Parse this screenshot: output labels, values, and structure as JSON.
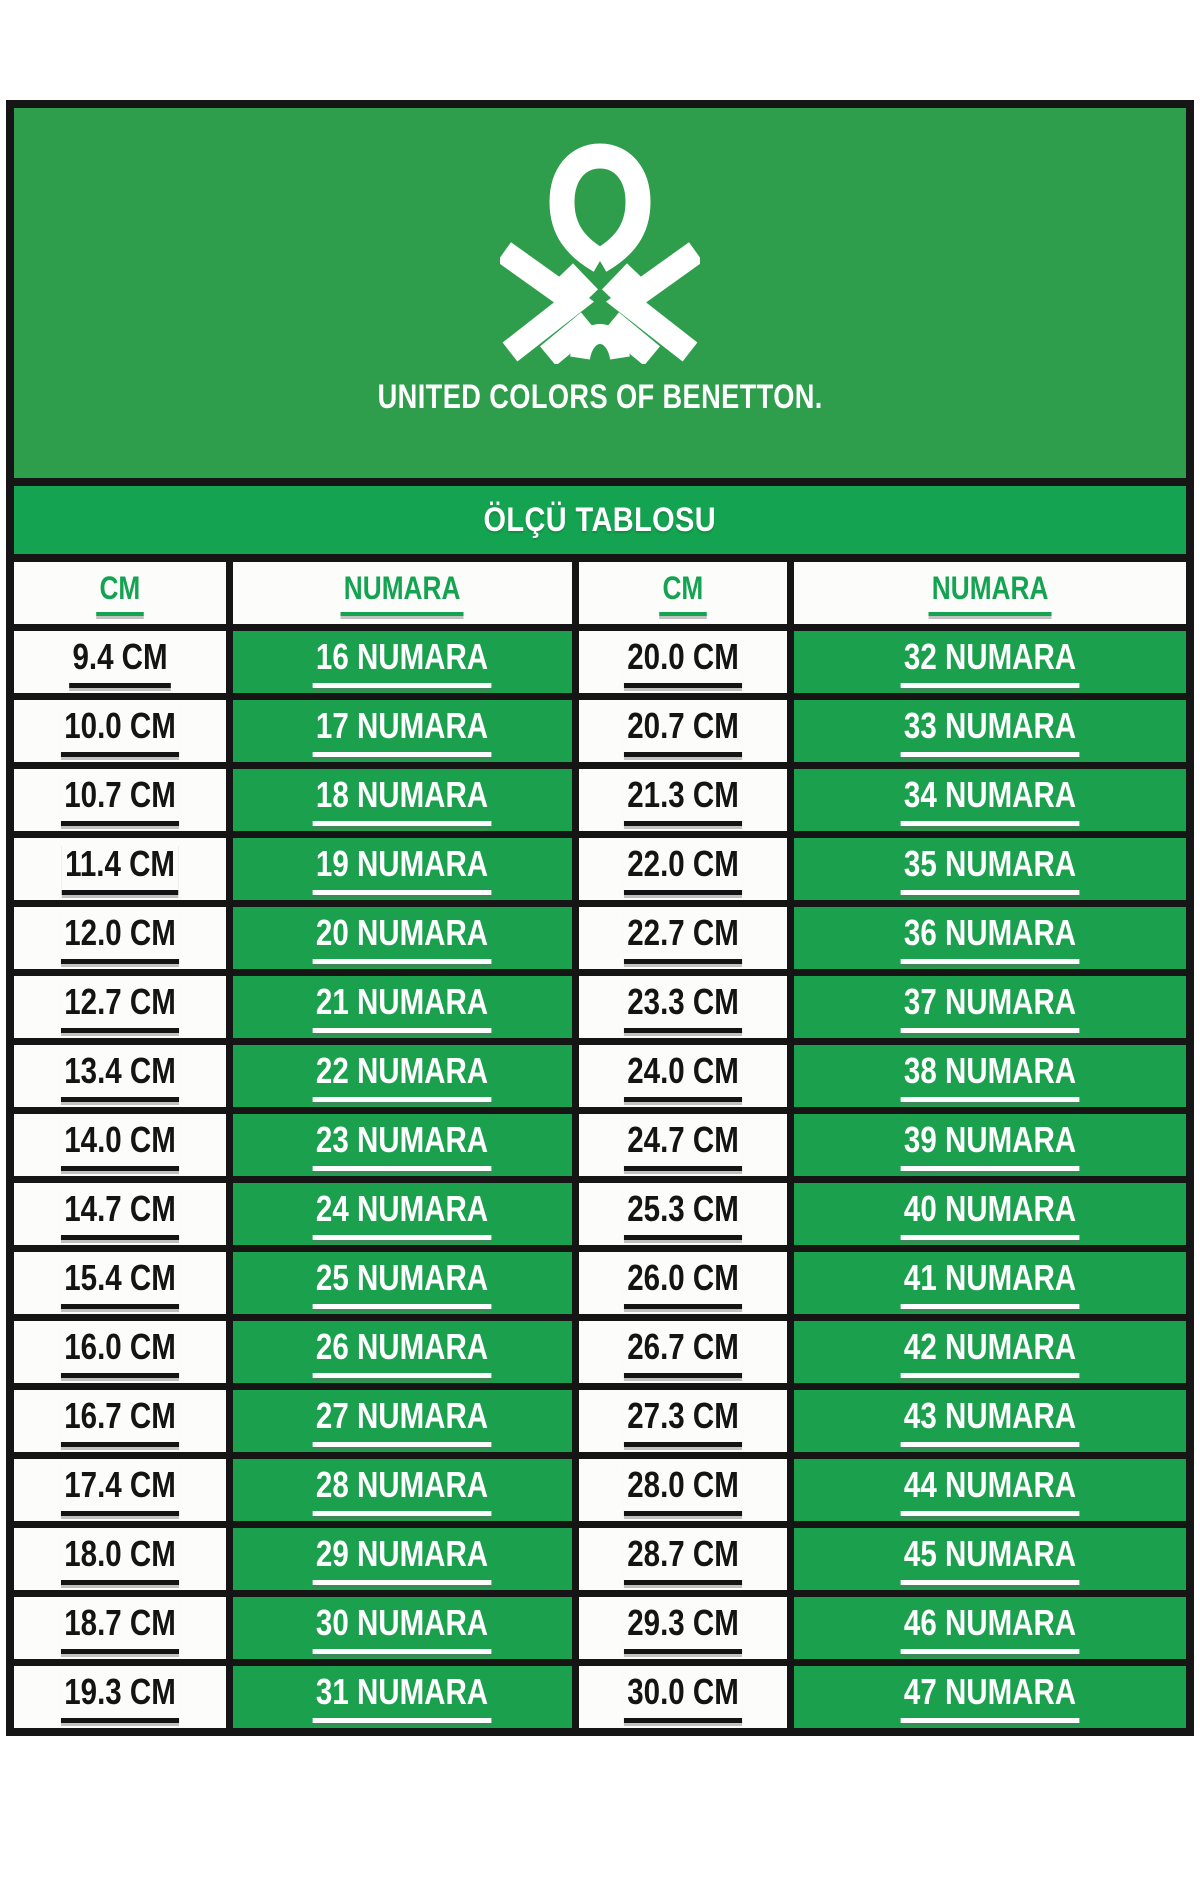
{
  "brand": {
    "logo_icon": "benetton-knot",
    "wordmark": "UNITED COLORS OF BENETTON."
  },
  "title_band": {
    "text": "ÖLÇÜ TABLOSU"
  },
  "size_table": {
    "columns": [
      "CM",
      "NUMARA",
      "CM",
      "NUMARA"
    ],
    "rows": [
      [
        "9.4 CM",
        "16 NUMARA",
        "20.0 CM",
        "32 NUMARA"
      ],
      [
        "10.0 CM",
        "17 NUMARA",
        "20.7 CM",
        "33 NUMARA"
      ],
      [
        "10.7 CM",
        "18 NUMARA",
        "21.3 CM",
        "34 NUMARA"
      ],
      [
        "11.4 CM",
        "19 NUMARA",
        "22.0 CM",
        "35 NUMARA"
      ],
      [
        "12.0 CM",
        "20 NUMARA",
        "22.7 CM",
        "36 NUMARA"
      ],
      [
        "12.7 CM",
        "21 NUMARA",
        "23.3 CM",
        "37 NUMARA"
      ],
      [
        "13.4 CM",
        "22 NUMARA",
        "24.0 CM",
        "38 NUMARA"
      ],
      [
        "14.0 CM",
        "23 NUMARA",
        "24.7 CM",
        "39 NUMARA"
      ],
      [
        "14.7 CM",
        "24 NUMARA",
        "25.3 CM",
        "40 NUMARA"
      ],
      [
        "15.4 CM",
        "25 NUMARA",
        "26.0 CM",
        "41 NUMARA"
      ],
      [
        "16.0 CM",
        "26 NUMARA",
        "26.7 CM",
        "42 NUMARA"
      ],
      [
        "16.7 CM",
        "27 NUMARA",
        "27.3 CM",
        "43 NUMARA"
      ],
      [
        "17.4 CM",
        "28 NUMARA",
        "28.0 CM",
        "44 NUMARA"
      ],
      [
        "18.0 CM",
        "29 NUMARA",
        "28.7 CM",
        "45 NUMARA"
      ],
      [
        "18.7 CM",
        "30 NUMARA",
        "29.3 CM",
        "46 NUMARA"
      ],
      [
        "19.3 CM",
        "31 NUMARA",
        "30.0 CM",
        "47 NUMARA"
      ]
    ]
  },
  "colors": {
    "logo_block_green": "#2f9e4c",
    "band_green": "#14a351",
    "cell_green": "#1ba04e",
    "header_text_green": "#14a351",
    "border_black": "#151515",
    "paper_white": "#fcfcfa",
    "cm_text": "#141414",
    "numara_text": "#ffffff"
  }
}
